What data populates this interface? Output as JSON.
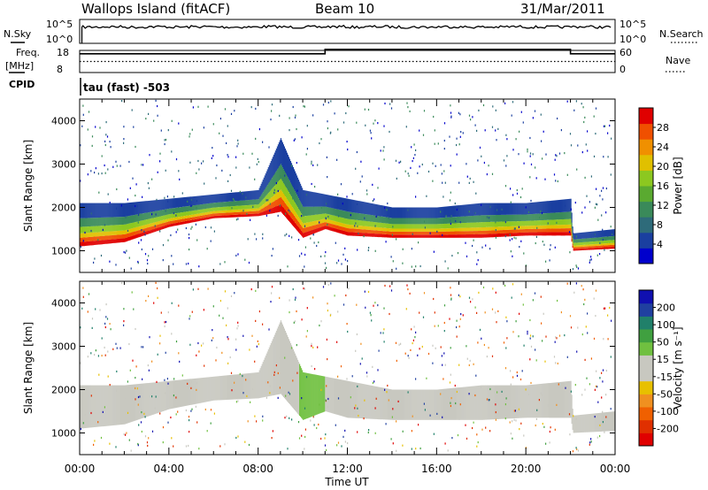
{
  "header": {
    "station": "Wallops Island (fitACF)",
    "beam": "Beam 10",
    "date": "31/Mar/2011"
  },
  "status_panel": {
    "nsky_label": "N.Sky",
    "nsky_ticks": [
      "10^5",
      "10^0"
    ],
    "nsearch_label": "N.Search",
    "nsearch_ticks": [
      "10^5",
      "10^0"
    ],
    "freq_label": "Freq.",
    "freq_unit": "[MHz]",
    "freq_ticks": [
      "18",
      "8"
    ],
    "nave_label": "Nave",
    "nave_ticks": [
      "60",
      "0"
    ],
    "cpid_label": "CPID",
    "cpid_value": "tau (fast) -503"
  },
  "colors": {
    "power_scale": [
      "#0000cc",
      "#1a3fa0",
      "#2e6b7a",
      "#3a8a5a",
      "#5aaa30",
      "#8cc820",
      "#e0c000",
      "#f09000",
      "#f05000",
      "#e00000"
    ],
    "velocity_scale": [
      "#1010b0",
      "#2040a0",
      "#20806a",
      "#40a040",
      "#70c040",
      "#c8c8c0",
      "#c8c8c0",
      "#e8c000",
      "#f09020",
      "#f06000",
      "#e03000",
      "#e00000"
    ]
  },
  "chart_data": [
    {
      "type": "line",
      "panel": "N.Sky / N.Search",
      "x_range_hours": [
        0,
        24
      ],
      "series": [
        {
          "name": "N.Sky",
          "note": "near 10^5 throughout, starting at ~00:15",
          "values_log10": [
            4.6,
            4.7,
            4.6,
            4.7,
            4.6,
            4.7,
            4.6,
            4.6,
            4.7,
            4.6,
            4.6,
            4.7,
            4.6,
            4.7,
            4.6,
            4.6,
            4.7,
            4.6,
            4.6,
            4.7,
            4.6,
            4.6,
            4.7,
            4.6
          ]
        },
        {
          "name": "N.Search",
          "values_log10": []
        }
      ]
    },
    {
      "type": "line",
      "panel": "Freq. / Nave",
      "x": [
        "00:00",
        "11:00",
        "22:00",
        "24:00"
      ],
      "series": [
        {
          "name": "Freq.",
          "unit": "MHz",
          "ylim": [
            8,
            18
          ],
          "values": [
            16.5,
            18.5,
            16.5,
            16.5
          ]
        },
        {
          "name": "Nave",
          "ylim": [
            0,
            60
          ],
          "values": [
            30,
            30,
            30,
            30
          ]
        }
      ]
    },
    {
      "type": "heatmap",
      "title": "",
      "xlabel": "Time UT",
      "ylabel": "Slant Range [km]",
      "x_ticks": [
        "00:00",
        "04:00",
        "08:00",
        "12:00",
        "16:00",
        "20:00",
        "00:00"
      ],
      "x_range_hours": [
        0,
        24
      ],
      "ylim": [
        500,
        4500
      ],
      "y_ticks": [
        "1000",
        "2000",
        "3000",
        "4000"
      ],
      "colorbar": {
        "label": "Power [dB]",
        "ticks": [
          "4",
          "8",
          "12",
          "16",
          "20",
          "24",
          "28"
        ],
        "range": [
          0,
          30
        ]
      },
      "echo_band_lower_edge_km": {
        "hours": [
          0,
          2,
          4,
          6,
          8,
          9,
          10,
          11,
          12,
          14,
          16,
          18,
          20,
          22,
          22.1,
          24
        ],
        "km": [
          1100,
          1200,
          1550,
          1750,
          1800,
          1900,
          1300,
          1500,
          1350,
          1300,
          1300,
          1300,
          1350,
          1350,
          1000,
          1050
        ]
      },
      "echo_band_upper_edge_km": {
        "hours": [
          0,
          2,
          4,
          6,
          8,
          9,
          10,
          11,
          12,
          14,
          16,
          18,
          20,
          22,
          22.1,
          24
        ],
        "km": [
          2100,
          2100,
          2200,
          2300,
          2400,
          3600,
          2400,
          2300,
          2200,
          2000,
          2000,
          2100,
          2100,
          2200,
          1400,
          1500
        ]
      }
    },
    {
      "type": "heatmap",
      "title": "",
      "xlabel": "Time UT",
      "ylabel": "Slant Range [km]",
      "x_ticks": [
        "00:00",
        "04:00",
        "08:00",
        "12:00",
        "16:00",
        "20:00",
        "00:00"
      ],
      "x_range_hours": [
        0,
        24
      ],
      "ylim": [
        500,
        4500
      ],
      "y_ticks": [
        "1000",
        "2000",
        "3000",
        "4000"
      ],
      "colorbar": {
        "label": "Velocity [m s⁻¹]",
        "ticks": [
          "200",
          "100",
          "50",
          "15",
          "-15",
          "-50",
          "-100",
          "-200"
        ],
        "range": [
          -250,
          250
        ]
      }
    }
  ]
}
